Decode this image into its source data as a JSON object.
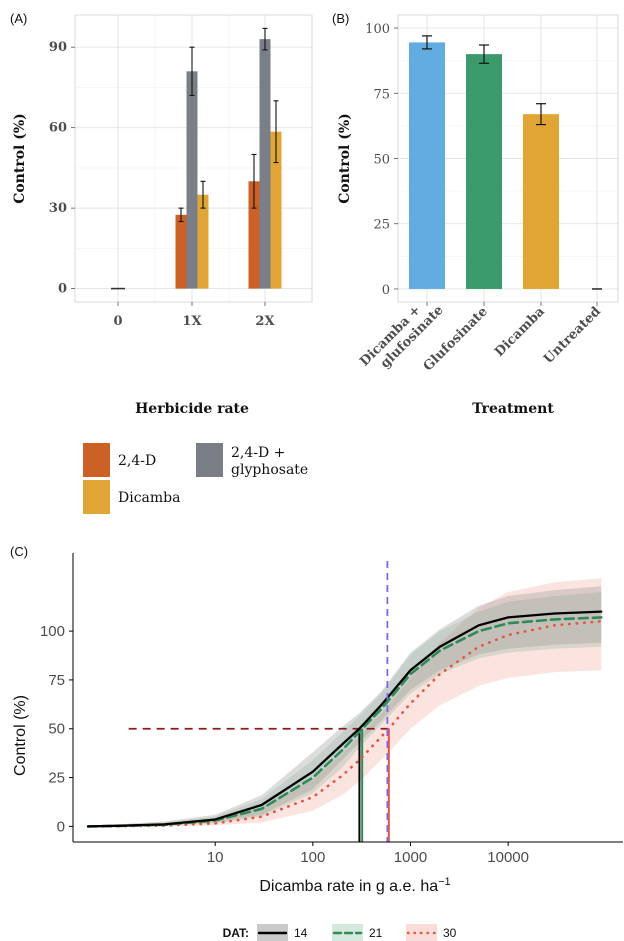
{
  "chart_data": [
    {
      "panel": "(A)",
      "type": "bar",
      "xlabel": "Herbicide rate",
      "ylabel": "Control (%)",
      "ylim": [
        -5,
        102
      ],
      "yticks": [
        0,
        30,
        60,
        90
      ],
      "categories": [
        "0",
        "1X",
        "2X"
      ],
      "grid": true,
      "series": [
        {
          "name": "2,4-D",
          "color": "#cc6127",
          "values": [
            0,
            27.5,
            40
          ],
          "err": [
            0,
            2.5,
            10
          ]
        },
        {
          "name": "2,4-D + glyphosate",
          "color": "#7a7f87",
          "values": [
            0,
            81,
            93
          ],
          "err": [
            0,
            9,
            4
          ]
        },
        {
          "name": "Dicamba",
          "color": "#e1a535",
          "values": [
            0,
            35,
            58.5
          ],
          "err": [
            0,
            5,
            11.5
          ]
        }
      ],
      "legend": {
        "placement": "bottom",
        "labels": [
          "2,4-D",
          "2,4-D +",
          "glyphosate",
          "Dicamba"
        ]
      }
    },
    {
      "panel": "(B)",
      "type": "bar",
      "xlabel": "Treatment",
      "ylabel": "Control (%)",
      "ylim": [
        -5,
        105
      ],
      "yticks": [
        0,
        25,
        50,
        75,
        100
      ],
      "categories": [
        "Dicamba +\nglufosinate",
        "Glufosinate",
        "Dicamba",
        "Untreated"
      ],
      "category_lines": [
        [
          "Dicamba +",
          "glufosinate"
        ],
        [
          "Glufosinate"
        ],
        [
          "Dicamba"
        ],
        [
          "Untreated"
        ]
      ],
      "values": [
        94.5,
        90,
        67,
        0
      ],
      "err": [
        2.5,
        3.5,
        4,
        0
      ],
      "colors": [
        "#62ace2",
        "#3a9a6b",
        "#e1a535",
        "#333333"
      ],
      "grid": true
    },
    {
      "panel": "(C)",
      "type": "line",
      "xlabel": "Dicamba rate in g a.e. ha",
      "xlabel_sup": "−1",
      "ylabel": "Control (%)",
      "xscale": "log",
      "xlim": [
        0.35,
        150000
      ],
      "ylim": [
        -8,
        140
      ],
      "xticks": [
        10,
        100,
        1000,
        10000
      ],
      "xtick_labels": [
        "10",
        "100",
        "1000",
        "10000"
      ],
      "yticks": [
        0,
        25,
        50,
        75,
        100
      ],
      "legend": {
        "title": "DAT:",
        "placement": "bottom",
        "entries": [
          "14",
          "21",
          "30"
        ]
      },
      "series": [
        {
          "name": "14",
          "color": "#000000",
          "style": "solid",
          "ed50": 300,
          "x": [
            0.5,
            1,
            3,
            10,
            30,
            100,
            200,
            300,
            500,
            1000,
            2000,
            5000,
            10000,
            30000,
            100000
          ],
          "y": [
            0,
            0.3,
            1,
            3.5,
            11,
            28,
            42,
            50,
            62,
            80,
            92,
            103,
            107,
            109,
            110
          ],
          "band_lo": [
            0,
            0,
            0.5,
            2,
            6,
            19,
            34,
            43,
            54,
            70,
            80,
            88,
            91,
            93,
            94
          ],
          "band_hi": [
            0.5,
            1,
            2.5,
            6,
            16,
            38,
            51,
            58,
            69,
            89,
            101,
            113,
            118,
            121,
            123
          ]
        },
        {
          "name": "21",
          "color": "#2e8b57",
          "style": "dashed",
          "ed50": 320,
          "x": [
            0.5,
            1,
            3,
            10,
            30,
            100,
            200,
            320,
            500,
            1000,
            2000,
            5000,
            10000,
            30000,
            100000
          ],
          "y": [
            0,
            0.2,
            0.8,
            3,
            9,
            25,
            39,
            50,
            60,
            78,
            90,
            100,
            104,
            106,
            107
          ],
          "band_lo": [
            0,
            0,
            0.3,
            1.5,
            5,
            17,
            30,
            42,
            52,
            68,
            78,
            86,
            89,
            91,
            92
          ],
          "band_hi": [
            0.5,
            1,
            2,
            5,
            14,
            34,
            48,
            58,
            68,
            88,
            100,
            110,
            115,
            118,
            120
          ]
        },
        {
          "name": "30",
          "color": "#e8553e",
          "style": "dotted",
          "ed50": 600,
          "x": [
            0.5,
            1,
            3,
            10,
            30,
            100,
            200,
            300,
            600,
            1000,
            2000,
            5000,
            10000,
            30000,
            100000
          ],
          "y": [
            0,
            0.1,
            0.4,
            1.5,
            5,
            15,
            26,
            34,
            50,
            63,
            78,
            92,
            98,
            103,
            105
          ],
          "band_lo": [
            0,
            0,
            0.1,
            0.5,
            2,
            8,
            16,
            23,
            38,
            50,
            62,
            72,
            76,
            79,
            80
          ],
          "band_hi": [
            0.5,
            0.8,
            1.5,
            4,
            10,
            24,
            37,
            46,
            62,
            76,
            94,
            112,
            120,
            125,
            127
          ]
        }
      ],
      "annotations": {
        "hline_y": 50,
        "hline_color": "#8b1a1a",
        "vline_x": 580,
        "vline_color": "#7b68ee"
      }
    }
  ]
}
